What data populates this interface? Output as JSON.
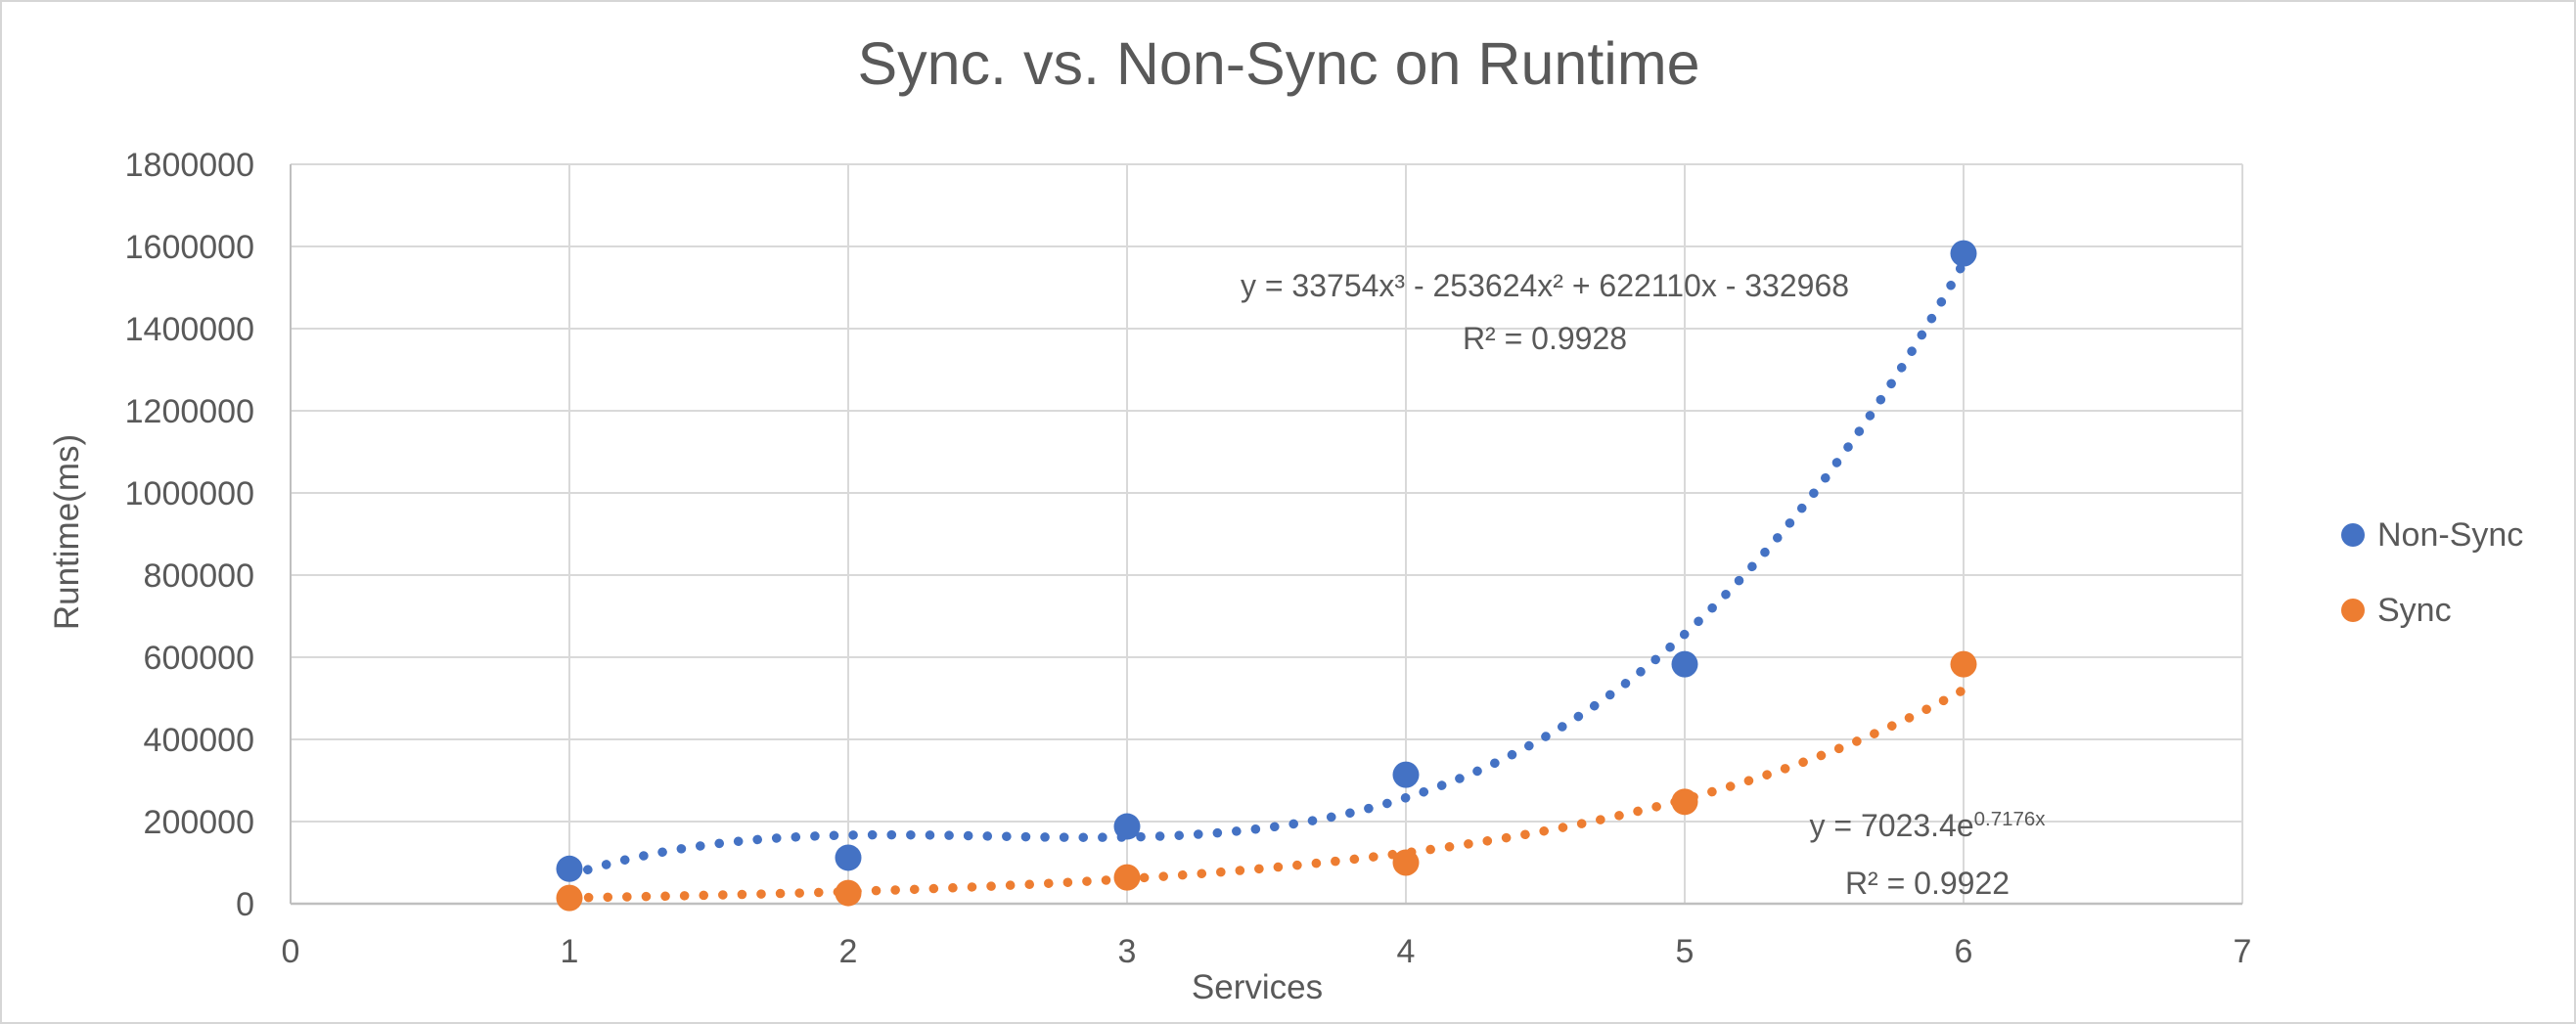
{
  "chart_data": {
    "type": "scatter",
    "title": "Sync. vs. Non-Sync on Runtime",
    "xlabel": "Services",
    "ylabel": "Runtime(ms)",
    "xlim": [
      0,
      7
    ],
    "xstep": 1,
    "ylim": [
      0,
      1800000
    ],
    "ystep": 200000,
    "grid": true,
    "legend_position": "right",
    "x": [
      1,
      2,
      3,
      4,
      5,
      6
    ],
    "series": [
      {
        "name": "Non-Sync",
        "color": "#4472C4",
        "values": [
          85000,
          112000,
          188000,
          314000,
          583000,
          1583000
        ],
        "trendline": {
          "kind": "polynomial",
          "coefficients": [
            33754,
            -253624,
            622110,
            -332968
          ],
          "range": [
            1,
            6
          ],
          "equation": "y = 33754x³ - 253624x² + 622110x - 332968",
          "r2": "R² = 0.9928"
        }
      },
      {
        "name": "Sync",
        "color": "#ED7D31",
        "values": [
          14000,
          26000,
          64000,
          100000,
          248000,
          583000
        ],
        "trendline": {
          "kind": "exponential",
          "a": 7023.4,
          "b": 0.7176,
          "range": [
            1,
            6
          ],
          "equation_base": "y = 7023.4e",
          "equation_exponent": "0.7176x",
          "r2": "R² = 0.9922"
        }
      }
    ],
    "colors": {
      "text": "#595959",
      "gridline": "#D9D9D9",
      "axis_line": "#BFBFBF",
      "background": "#FFFFFF"
    }
  }
}
